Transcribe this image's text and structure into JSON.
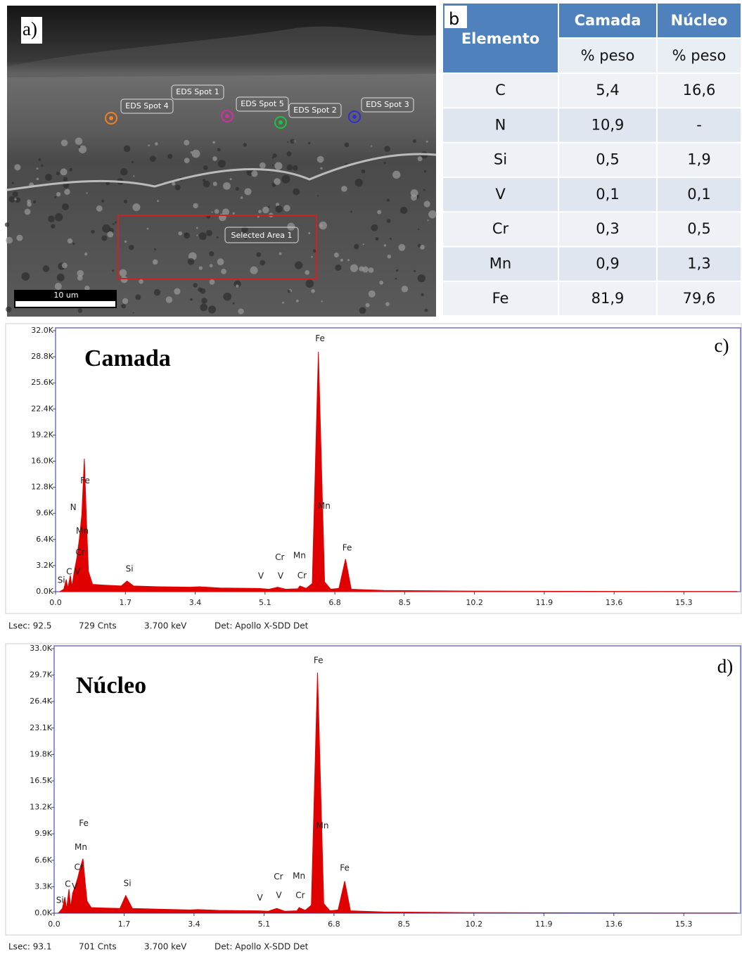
{
  "panel_a": {
    "label": "a)",
    "spots": [
      "EDS Spot 1",
      "EDS Spot 4",
      "EDS Spot 5",
      "EDS Spot 2",
      "EDS Spot 3"
    ],
    "area": "Selected Area 1",
    "scale": "10 um"
  },
  "table": {
    "label": "b",
    "header": [
      "Elemento",
      "Camada",
      "Núcleo"
    ],
    "subheader": [
      "% peso",
      "% peso"
    ],
    "rows": [
      [
        "C",
        "5,4",
        "16,6"
      ],
      [
        "N",
        "10,9",
        "-"
      ],
      [
        "Si",
        "0,5",
        "1,9"
      ],
      [
        "V",
        "0,1",
        "0,1"
      ],
      [
        "Cr",
        "0,3",
        "0,5"
      ],
      [
        "Mn",
        "0,9",
        "1,3"
      ],
      [
        "Fe",
        "81,9",
        "79,6"
      ]
    ]
  },
  "chart_data": [
    {
      "type": "area",
      "title": "Camada",
      "panel": "c)",
      "color": "#e00000",
      "x": [
        0.1,
        0.2,
        0.26,
        0.3,
        0.36,
        0.4,
        0.45,
        0.52,
        0.58,
        0.64,
        0.7,
        0.75,
        0.8,
        0.9,
        1.2,
        1.6,
        1.74,
        1.9,
        2.5,
        3.3,
        3.5,
        4.0,
        4.95,
        5.2,
        5.41,
        5.6,
        5.9,
        5.95,
        6.1,
        6.25,
        6.4,
        6.55,
        6.7,
        6.9,
        7.06,
        7.2,
        8.0,
        10.0,
        13.0,
        16.6
      ],
      "values": [
        0,
        300,
        1500,
        400,
        2000,
        600,
        2300,
        4200,
        6500,
        9500,
        16300,
        9000,
        2500,
        900,
        800,
        700,
        1300,
        700,
        600,
        550,
        600,
        450,
        400,
        300,
        550,
        300,
        350,
        700,
        400,
        1000,
        29400,
        1200,
        300,
        400,
        4000,
        300,
        150,
        80,
        40,
        20
      ],
      "xlim": [
        0,
        16.68
      ],
      "ylim": [
        0,
        32000
      ],
      "xticks": [
        {
          "value": 0,
          "label": "0.0"
        },
        1.7,
        3.4,
        5.1,
        6.8,
        8.5,
        10.2,
        11.9,
        13.6,
        15.3
      ],
      "yticks": [
        {
          "value": 0,
          "label": "0.0K"
        },
        {
          "value": 3200,
          "label": "3.2K"
        },
        {
          "value": 6400,
          "label": "6.4K"
        },
        {
          "value": 9600,
          "label": "9.6K"
        },
        {
          "value": 12800,
          "label": "12.8K"
        },
        {
          "value": 16000,
          "label": "16.0K"
        },
        {
          "value": 19200,
          "label": "19.2K"
        },
        {
          "value": 22400,
          "label": "22.4K"
        },
        {
          "value": 25600,
          "label": "25.6K"
        },
        {
          "value": 28800,
          "label": "28.8K"
        },
        {
          "value": 32000,
          "label": "32.0K"
        }
      ],
      "annotations": [
        {
          "text": "Fe",
          "x": 6.44,
          "y": 31000
        },
        {
          "text": "Mn",
          "x": 6.54,
          "y": 10500
        },
        {
          "text": "Fe",
          "x": 7.1,
          "y": 5350
        },
        {
          "text": "Fe",
          "x": 0.72,
          "y": 13600
        },
        {
          "text": "N",
          "x": 0.43,
          "y": 10300
        },
        {
          "text": "Mn",
          "x": 0.65,
          "y": 7400
        },
        {
          "text": "Cr",
          "x": 0.6,
          "y": 4800
        },
        {
          "text": "Si",
          "x": 1.8,
          "y": 2760
        },
        {
          "text": "C",
          "x": 0.33,
          "y": 2400
        },
        {
          "text": "V",
          "x": 0.53,
          "y": 2400
        },
        {
          "text": "Si",
          "x": 0.14,
          "y": 1400
        },
        {
          "text": "V",
          "x": 5.0,
          "y": 1900
        },
        {
          "text": "Cr",
          "x": 5.46,
          "y": 4200
        },
        {
          "text": "Mn",
          "x": 5.94,
          "y": 4400
        },
        {
          "text": "V",
          "x": 5.48,
          "y": 1900
        },
        {
          "text": "Cr",
          "x": 6.0,
          "y": 1950
        }
      ],
      "footer": [
        "Lsec: 92.5",
        "729 Cnts",
        "3.700 keV",
        "Det: Apollo X-SDD Det"
      ]
    },
    {
      "type": "area",
      "title": "Núcleo",
      "panel": "d)",
      "color": "#e00000",
      "x": [
        0.1,
        0.2,
        0.26,
        0.3,
        0.36,
        0.4,
        0.45,
        0.52,
        0.58,
        0.64,
        0.7,
        0.75,
        0.8,
        0.9,
        1.2,
        1.6,
        1.74,
        1.9,
        2.5,
        3.3,
        3.5,
        4.0,
        4.95,
        5.2,
        5.41,
        5.6,
        5.9,
        5.95,
        6.1,
        6.25,
        6.4,
        6.55,
        6.7,
        6.9,
        7.06,
        7.2,
        8.0,
        10.0,
        13.0,
        16.6
      ],
      "values": [
        0,
        600,
        2000,
        500,
        3000,
        700,
        2500,
        3500,
        4500,
        5800,
        6800,
        4000,
        1500,
        700,
        650,
        600,
        2200,
        600,
        500,
        400,
        450,
        350,
        300,
        250,
        600,
        250,
        300,
        700,
        350,
        1000,
        30000,
        1200,
        300,
        400,
        4000,
        300,
        150,
        80,
        40,
        20
      ],
      "xlim": [
        0,
        16.68
      ],
      "ylim": [
        0,
        33000
      ],
      "xticks": [
        {
          "value": 0,
          "label": "0.0"
        },
        1.7,
        3.4,
        5.1,
        6.8,
        8.5,
        10.2,
        11.9,
        13.6,
        15.3
      ],
      "yticks": [
        {
          "value": 0,
          "label": "0.0K"
        },
        {
          "value": 3300,
          "label": "3.3K"
        },
        {
          "value": 6600,
          "label": "6.6K"
        },
        {
          "value": 9900,
          "label": "9.9K"
        },
        {
          "value": 13200,
          "label": "13.2K"
        },
        {
          "value": 16500,
          "label": "16.5K"
        },
        {
          "value": 19800,
          "label": "19.8K"
        },
        {
          "value": 23100,
          "label": "23.1K"
        },
        {
          "value": 26400,
          "label": "26.4K"
        },
        {
          "value": 29700,
          "label": "29.7K"
        },
        {
          "value": 33000,
          "label": "33.0K"
        }
      ],
      "annotations": [
        {
          "text": "Fe",
          "x": 6.42,
          "y": 31500
        },
        {
          "text": "Mn",
          "x": 6.52,
          "y": 10900
        },
        {
          "text": "Fe",
          "x": 7.06,
          "y": 5600
        },
        {
          "text": "Fe",
          "x": 0.72,
          "y": 11200
        },
        {
          "text": "Mn",
          "x": 0.65,
          "y": 8200
        },
        {
          "text": "Cr",
          "x": 0.6,
          "y": 5700
        },
        {
          "text": "C",
          "x": 0.33,
          "y": 3600
        },
        {
          "text": "V",
          "x": 0.5,
          "y": 3300
        },
        {
          "text": "Si",
          "x": 0.14,
          "y": 1600
        },
        {
          "text": "Si",
          "x": 1.78,
          "y": 3700
        },
        {
          "text": "V",
          "x": 5.0,
          "y": 1900
        },
        {
          "text": "Cr",
          "x": 5.45,
          "y": 4500
        },
        {
          "text": "Mn",
          "x": 5.95,
          "y": 4600
        },
        {
          "text": "V",
          "x": 5.46,
          "y": 2200
        },
        {
          "text": "Cr",
          "x": 5.98,
          "y": 2200
        }
      ],
      "footer": [
        "Lsec: 93.1",
        "701 Cnts",
        "3.700 keV",
        "Det: Apollo X-SDD Det"
      ]
    }
  ]
}
